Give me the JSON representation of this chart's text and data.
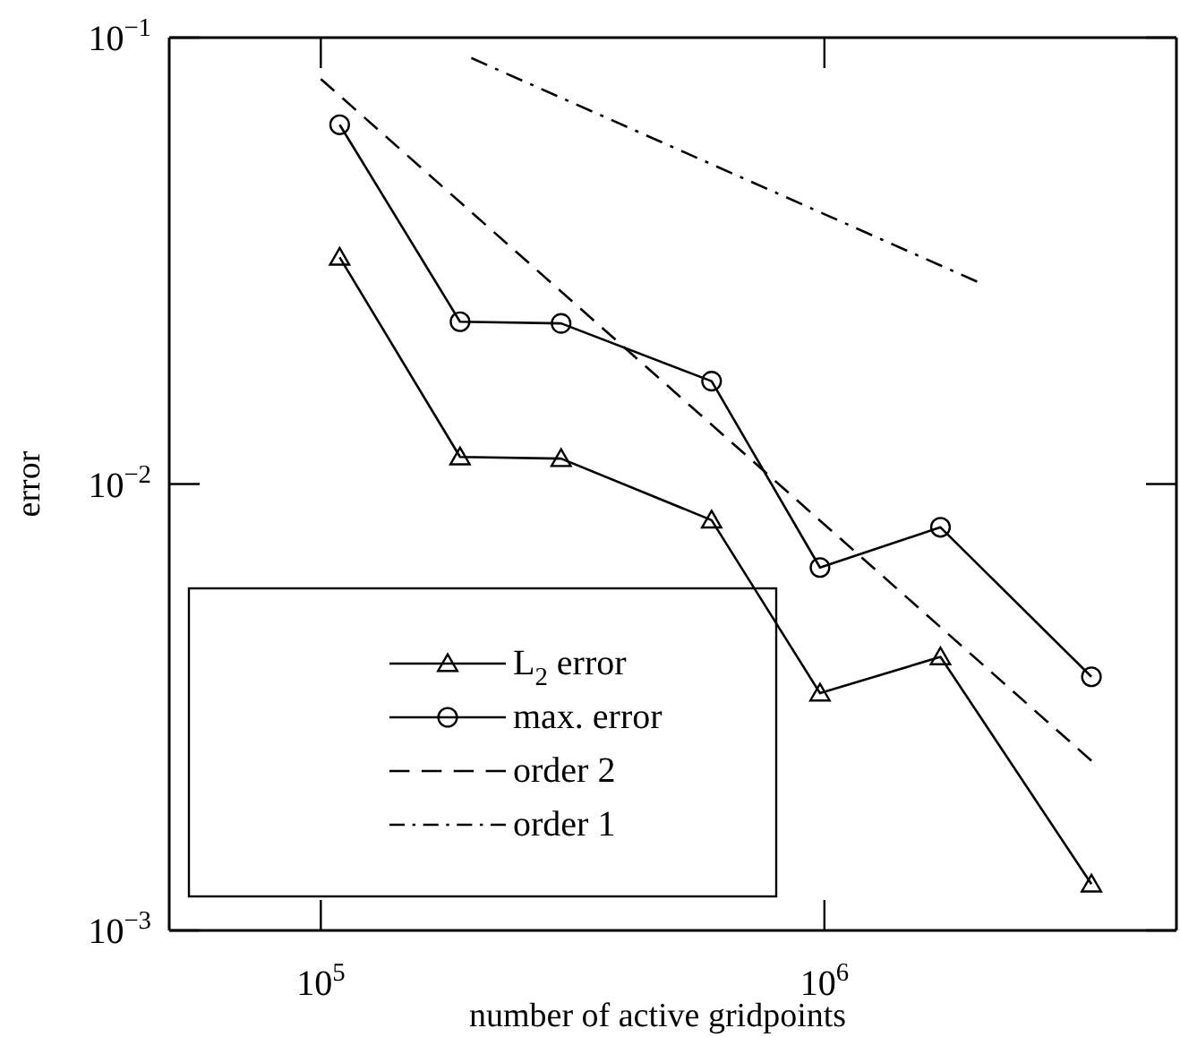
{
  "chart_data": {
    "type": "line",
    "xlabel": "number of active gridpoints",
    "ylabel": "error",
    "log": "xy",
    "xlim": [
      50000,
      5000000
    ],
    "ylim": [
      0.001,
      0.1
    ],
    "xticks": [
      {
        "value": 100000,
        "label": "10$^{5}$"
      },
      {
        "value": 1000000,
        "label": "10$^{6}$"
      }
    ],
    "yticks": [
      {
        "value": 0.001,
        "label": "10$^{−3}$"
      },
      {
        "value": 0.01,
        "label": "10$^{−2}$"
      },
      {
        "value": 0.1,
        "label": "10$^{−1}$"
      }
    ],
    "legend": "bottom left",
    "grid": false,
    "series": [
      {
        "name": "L$_{2}$ error",
        "color": "#000000",
        "marker": "triangle",
        "line_style": "solid",
        "x": [
          109000,
          189000,
          300000,
          597000,
          980000,
          1700000,
          3390000
        ],
        "values": [
          0.0322,
          0.0115,
          0.0114,
          0.0083,
          0.0034,
          0.0041,
          0.00127
        ]
      },
      {
        "name": "max. error",
        "color": "#000000",
        "marker": "circle",
        "line_style": "solid",
        "x": [
          109000,
          189000,
          300000,
          597000,
          980000,
          1700000,
          3390000
        ],
        "values": [
          0.0638,
          0.0231,
          0.0229,
          0.017,
          0.0065,
          0.008,
          0.0037
        ]
      },
      {
        "name": "order 2",
        "color": "#000000",
        "marker": "none",
        "line_style": "dashed",
        "x": [
          100000,
          3390000
        ],
        "values": [
          0.0808,
          0.0024
        ]
      },
      {
        "name": "order 1",
        "color": "#000000",
        "marker": "none",
        "line_style": "dashdot",
        "x": [
          199000,
          2010000
        ],
        "values": [
          0.09,
          0.0284
        ]
      }
    ]
  }
}
